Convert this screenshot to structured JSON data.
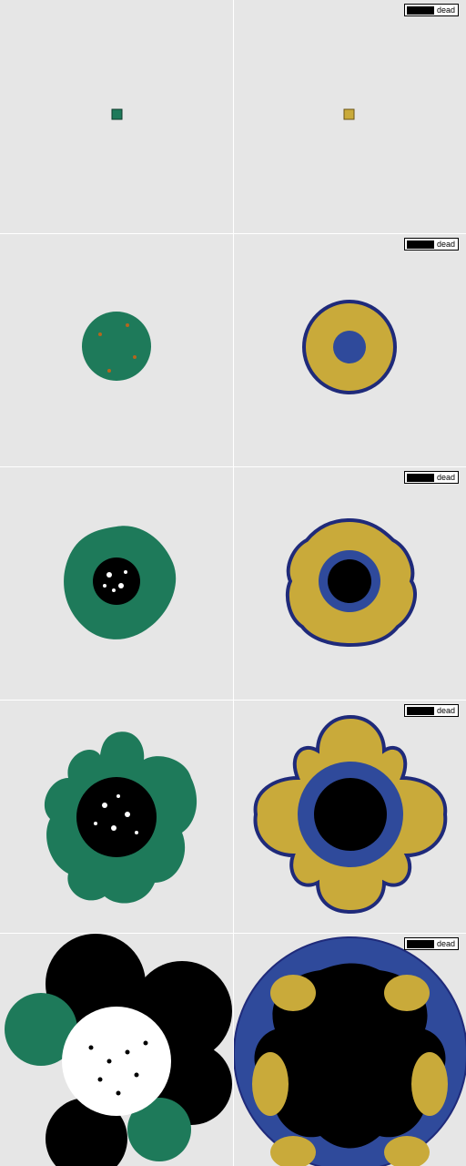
{
  "legend": {
    "label": "dead",
    "swatch_color": "#000000"
  },
  "colors": {
    "background": "#e6e6e6",
    "agent_cell": "#1e7a5a",
    "agent_cell_alt": "#b5651d",
    "dead": "#000000",
    "continuum_outer": "#c9aa3a",
    "continuum_inner": "#2f4a9b",
    "continuum_edge": "#1f2a7a"
  },
  "panels": [
    {
      "row": 0,
      "left": "agent-based",
      "right": "continuum",
      "stage": "seed"
    },
    {
      "row": 1,
      "left": "agent-based",
      "right": "continuum",
      "stage": "disc"
    },
    {
      "row": 2,
      "left": "agent-based",
      "right": "continuum",
      "stage": "necrotic-core"
    },
    {
      "row": 3,
      "left": "agent-based",
      "right": "continuum",
      "stage": "lobed"
    },
    {
      "row": 4,
      "left": "agent-based",
      "right": "continuum",
      "stage": "large"
    }
  ]
}
